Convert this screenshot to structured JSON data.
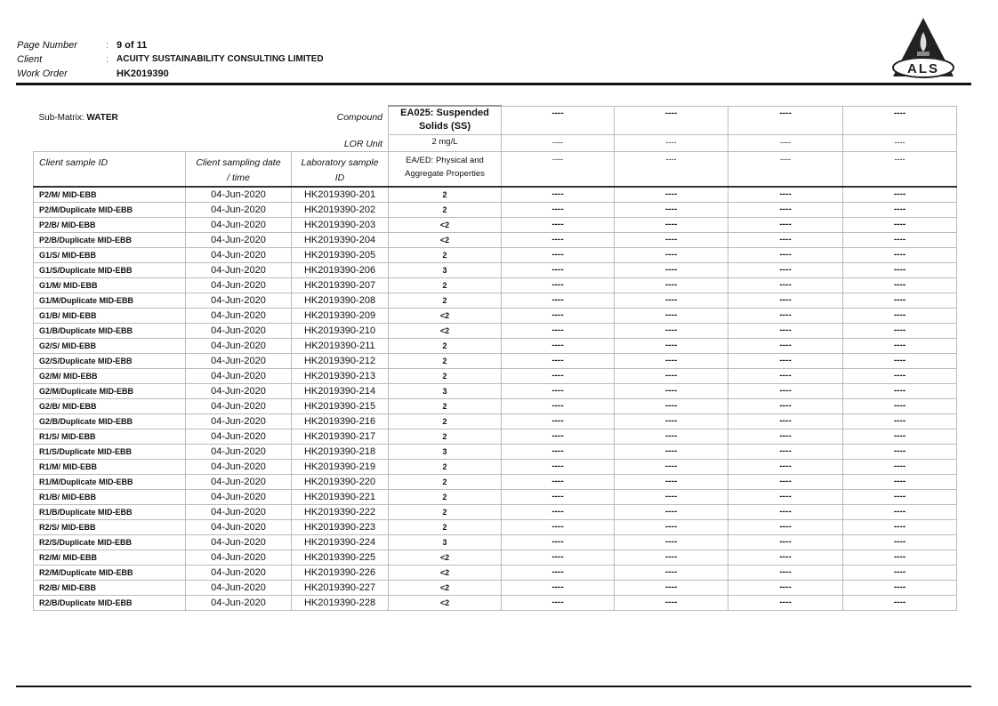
{
  "header": {
    "page_number_label": "Page Number",
    "page_number": "9 of 11",
    "client_label": "Client",
    "client": "ACUITY SUSTAINABILITY CONSULTING LIMITED",
    "work_order_label": "Work Order",
    "work_order": "HK2019390",
    "logo_text": "ALS"
  },
  "table": {
    "sub_matrix_label": "Sub-Matrix:",
    "sub_matrix": "WATER",
    "compound_label": "Compound",
    "lor_label": "LOR Unit",
    "col_sample_id": "Client sample ID",
    "col_date": "Client sampling date",
    "col_date2": "/ time",
    "col_lab": "Laboratory sample",
    "col_lab2": "ID",
    "compound": "EA025: Suspended Solids (SS)",
    "lor": "2 mg/L",
    "method": "EA/ED: Physical and Aggregate Properties",
    "blank": "----",
    "rows": [
      [
        "P2/M/ MID-EBB",
        "04-Jun-2020",
        "HK2019390-201",
        "2"
      ],
      [
        "P2/M/Duplicate MID-EBB",
        "04-Jun-2020",
        "HK2019390-202",
        "2"
      ],
      [
        "P2/B/ MID-EBB",
        "04-Jun-2020",
        "HK2019390-203",
        "<2"
      ],
      [
        "P2/B/Duplicate MID-EBB",
        "04-Jun-2020",
        "HK2019390-204",
        "<2"
      ],
      [
        "G1/S/ MID-EBB",
        "04-Jun-2020",
        "HK2019390-205",
        "2"
      ],
      [
        "G1/S/Duplicate MID-EBB",
        "04-Jun-2020",
        "HK2019390-206",
        "3"
      ],
      [
        "G1/M/ MID-EBB",
        "04-Jun-2020",
        "HK2019390-207",
        "2"
      ],
      [
        "G1/M/Duplicate MID-EBB",
        "04-Jun-2020",
        "HK2019390-208",
        "2"
      ],
      [
        "G1/B/ MID-EBB",
        "04-Jun-2020",
        "HK2019390-209",
        "<2"
      ],
      [
        "G1/B/Duplicate MID-EBB",
        "04-Jun-2020",
        "HK2019390-210",
        "<2"
      ],
      [
        "G2/S/ MID-EBB",
        "04-Jun-2020",
        "HK2019390-211",
        "2"
      ],
      [
        "G2/S/Duplicate MID-EBB",
        "04-Jun-2020",
        "HK2019390-212",
        "2"
      ],
      [
        "G2/M/ MID-EBB",
        "04-Jun-2020",
        "HK2019390-213",
        "2"
      ],
      [
        "G2/M/Duplicate MID-EBB",
        "04-Jun-2020",
        "HK2019390-214",
        "3"
      ],
      [
        "G2/B/ MID-EBB",
        "04-Jun-2020",
        "HK2019390-215",
        "2"
      ],
      [
        "G2/B/Duplicate MID-EBB",
        "04-Jun-2020",
        "HK2019390-216",
        "2"
      ],
      [
        "R1/S/ MID-EBB",
        "04-Jun-2020",
        "HK2019390-217",
        "2"
      ],
      [
        "R1/S/Duplicate MID-EBB",
        "04-Jun-2020",
        "HK2019390-218",
        "3"
      ],
      [
        "R1/M/ MID-EBB",
        "04-Jun-2020",
        "HK2019390-219",
        "2"
      ],
      [
        "R1/M/Duplicate MID-EBB",
        "04-Jun-2020",
        "HK2019390-220",
        "2"
      ],
      [
        "R1/B/ MID-EBB",
        "04-Jun-2020",
        "HK2019390-221",
        "2"
      ],
      [
        "R1/B/Duplicate MID-EBB",
        "04-Jun-2020",
        "HK2019390-222",
        "2"
      ],
      [
        "R2/S/ MID-EBB",
        "04-Jun-2020",
        "HK2019390-223",
        "2"
      ],
      [
        "R2/S/Duplicate MID-EBB",
        "04-Jun-2020",
        "HK2019390-224",
        "3"
      ],
      [
        "R2/M/ MID-EBB",
        "04-Jun-2020",
        "HK2019390-225",
        "<2"
      ],
      [
        "R2/M/Duplicate MID-EBB",
        "04-Jun-2020",
        "HK2019390-226",
        "<2"
      ],
      [
        "R2/B/ MID-EBB",
        "04-Jun-2020",
        "HK2019390-227",
        "<2"
      ],
      [
        "R2/B/Duplicate MID-EBB",
        "04-Jun-2020",
        "HK2019390-228",
        "<2"
      ]
    ]
  }
}
